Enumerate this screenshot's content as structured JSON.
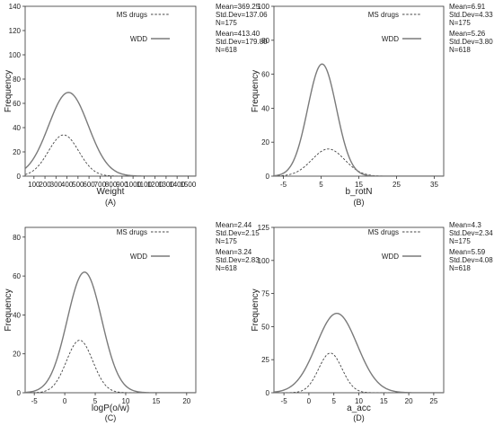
{
  "chart_data": [
    {
      "type": "line",
      "panel_label": "(A)",
      "xlabel": "Weight",
      "ylabel": "Frequency",
      "xlim": [
        20,
        1570
      ],
      "ylim": [
        0,
        140
      ],
      "xticks": [
        100,
        200,
        300,
        400,
        500,
        600,
        700,
        800,
        900,
        1000,
        1100,
        1200,
        1300,
        1400,
        1500
      ],
      "yticks": [
        0,
        20,
        40,
        60,
        80,
        100,
        120,
        140
      ],
      "series": [
        {
          "name": "MS drugs",
          "style": "dashed",
          "color": "#444444",
          "stats": [
            "Mean=369.25",
            "Std.Dev=137.06",
            "N=175"
          ],
          "curve": {
            "mean": 369.25,
            "sd": 137.06,
            "peak": 34
          }
        },
        {
          "name": "WDD",
          "style": "solid",
          "color": "#7a7a7a",
          "stats": [
            "Mean=413.40",
            "Std.Dev=179.80",
            "N=618"
          ],
          "curve": {
            "mean": 413.4,
            "sd": 179.8,
            "peak": 69
          }
        }
      ]
    },
    {
      "type": "line",
      "panel_label": "(B)",
      "xlabel": "b_rotN",
      "ylabel": "Frequency",
      "xlim": [
        -7.5,
        37.5
      ],
      "ylim": [
        0,
        100
      ],
      "xticks": [
        -5,
        5,
        15,
        25,
        35
      ],
      "yticks": [
        0,
        20,
        40,
        60,
        80,
        100
      ],
      "series": [
        {
          "name": "MS drugs",
          "style": "dashed",
          "color": "#444444",
          "stats": [
            "Mean=6.91",
            "Std.Dev=4.33",
            "N=175"
          ],
          "curve": {
            "mean": 6.91,
            "sd": 4.33,
            "peak": 16
          }
        },
        {
          "name": "WDD",
          "style": "solid",
          "color": "#7a7a7a",
          "stats": [
            "Mean=5.26",
            "Std.Dev=3.80",
            "N=618"
          ],
          "curve": {
            "mean": 5.26,
            "sd": 3.8,
            "peak": 66
          }
        }
      ]
    },
    {
      "type": "line",
      "panel_label": "(C)",
      "xlabel": "logP(o/w)",
      "ylabel": "Frequency",
      "xlim": [
        -6.5,
        21.5
      ],
      "ylim": [
        0,
        85
      ],
      "xticks": [
        -5,
        0,
        5,
        10,
        15,
        20
      ],
      "yticks": [
        0,
        20,
        40,
        60,
        80
      ],
      "series": [
        {
          "name": "MS drugs",
          "style": "dashed",
          "color": "#444444",
          "stats": [
            "Mean=2.44",
            "Std.Dev=2.15",
            "N=175"
          ],
          "curve": {
            "mean": 2.44,
            "sd": 2.15,
            "peak": 27
          }
        },
        {
          "name": "WDD",
          "style": "solid",
          "color": "#7a7a7a",
          "stats": [
            "Mean=3.24",
            "Std.Dev=2.83",
            "N=618"
          ],
          "curve": {
            "mean": 3.24,
            "sd": 2.83,
            "peak": 62
          }
        }
      ]
    },
    {
      "type": "line",
      "panel_label": "(D)",
      "xlabel": "a_acc",
      "ylabel": "Frequency",
      "xlim": [
        -7,
        27
      ],
      "ylim": [
        0,
        125
      ],
      "xticks": [
        -5,
        0,
        5,
        10,
        15,
        20,
        25
      ],
      "yticks": [
        0,
        25,
        50,
        75,
        100,
        125
      ],
      "series": [
        {
          "name": "MS drugs",
          "style": "dashed",
          "color": "#444444",
          "stats": [
            "Mean=4.3",
            "Std.Dev=2.34",
            "N=175"
          ],
          "curve": {
            "mean": 4.3,
            "sd": 2.34,
            "peak": 30
          }
        },
        {
          "name": "WDD",
          "style": "solid",
          "color": "#7a7a7a",
          "stats": [
            "Mean=5.59",
            "Std.Dev=4.08",
            "N=618"
          ],
          "curve": {
            "mean": 5.59,
            "sd": 4.08,
            "peak": 60
          }
        }
      ]
    }
  ]
}
